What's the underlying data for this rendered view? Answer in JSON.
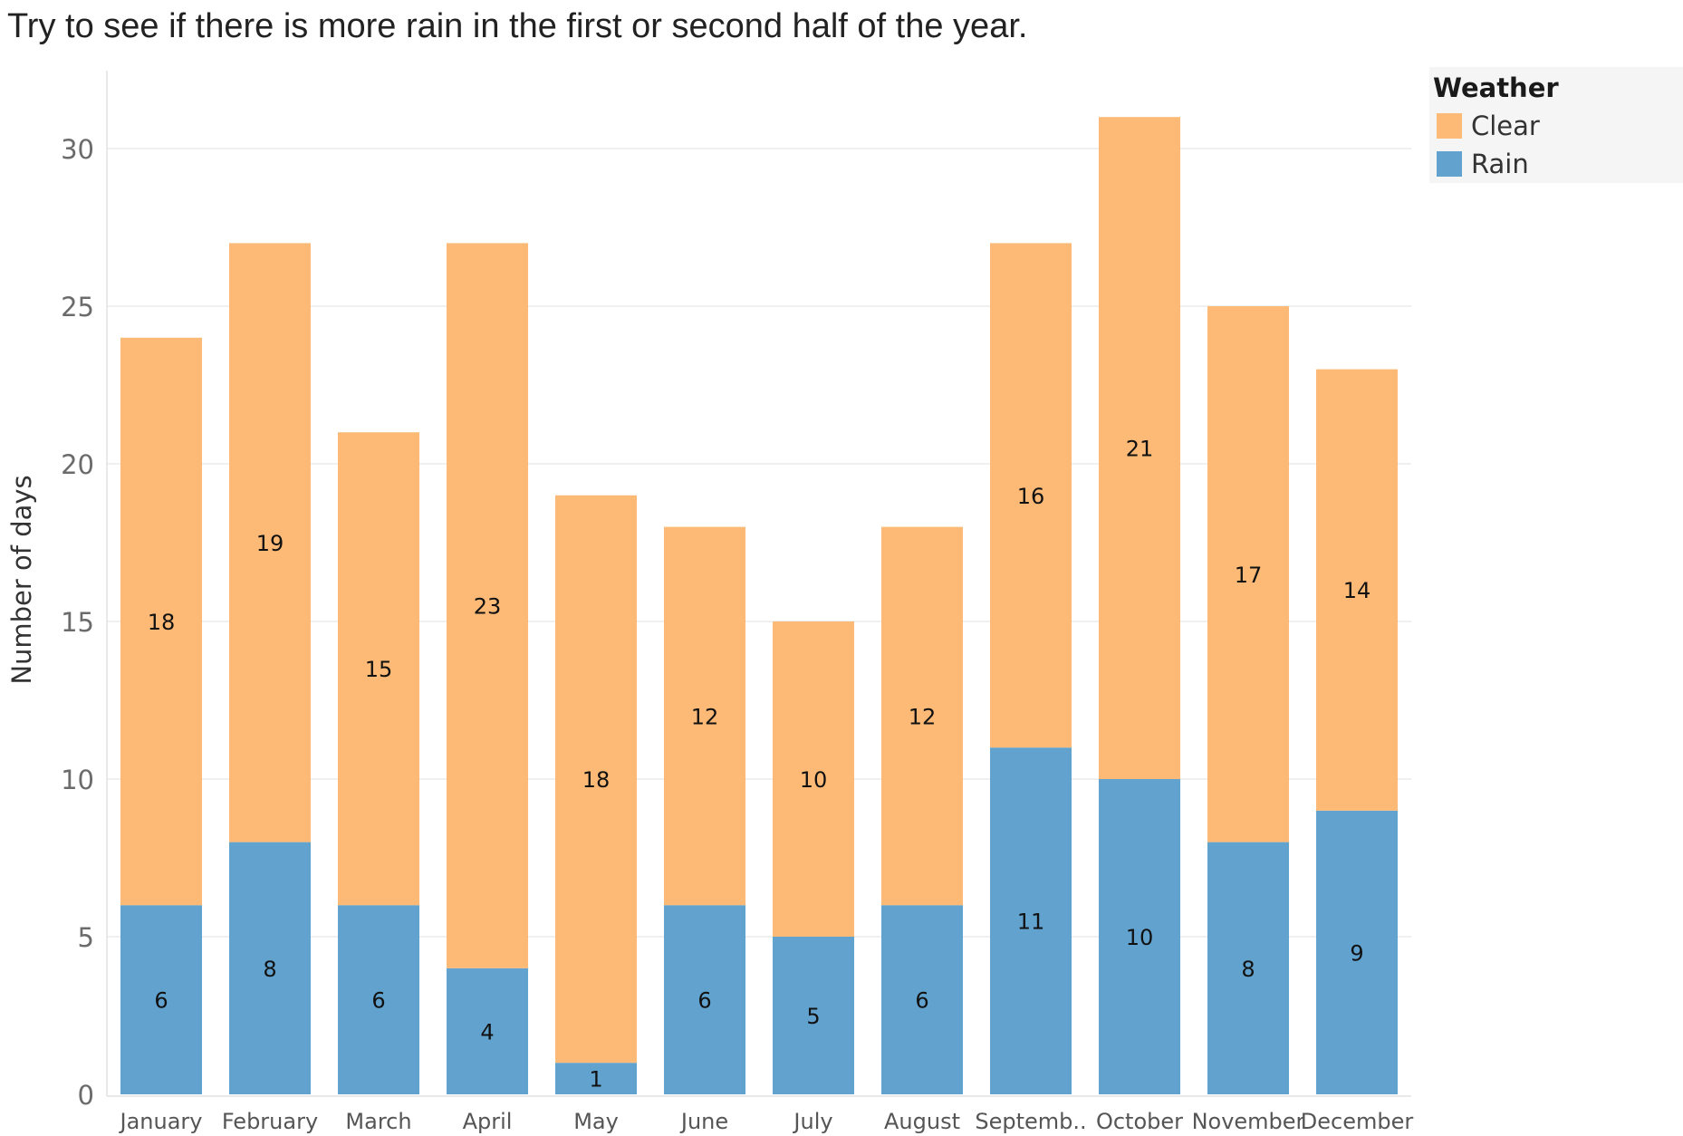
{
  "chart_data": {
    "type": "bar",
    "stacked": true,
    "title": "Try to see if there is more rain in the first or second half of the year.",
    "ylabel": "Number of days",
    "xlabel": "",
    "ylim": [
      0,
      32.5
    ],
    "yticks": [
      0,
      5,
      10,
      15,
      20,
      25,
      30
    ],
    "grid": true,
    "legend_position": "top-right",
    "legend_title": "Weather",
    "categories": [
      "January",
      "February",
      "March",
      "April",
      "May",
      "June",
      "July",
      "August",
      "Septemb..",
      "October",
      "November",
      "December"
    ],
    "series": [
      {
        "name": "Rain",
        "color": "#61a2cf",
        "values": [
          6,
          8,
          6,
          4,
          1,
          6,
          5,
          6,
          11,
          10,
          8,
          9
        ]
      },
      {
        "name": "Clear",
        "color": "#fdba76",
        "values": [
          18,
          19,
          15,
          23,
          18,
          12,
          10,
          12,
          16,
          21,
          17,
          14
        ]
      }
    ],
    "legend_order": [
      "Clear",
      "Rain"
    ]
  }
}
